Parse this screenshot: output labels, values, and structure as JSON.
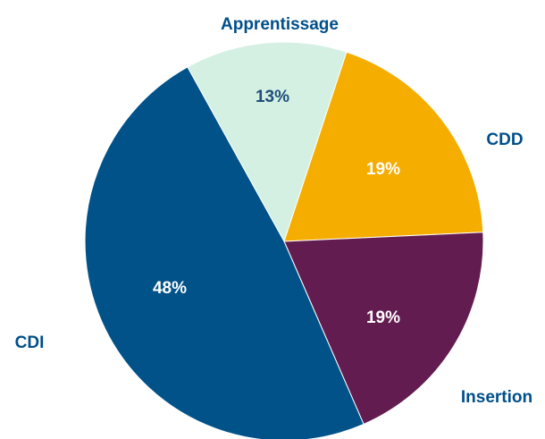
{
  "chart_data": {
    "type": "pie",
    "title": "",
    "start": "top",
    "direction": "clockwise",
    "slices": [
      {
        "name": "Apprentissage",
        "value": 13,
        "value_label": "13%",
        "color": "#d3f0e3",
        "label_color": "#1f4e79",
        "category_color": "#004f8a"
      },
      {
        "name": "CDD",
        "value": 19,
        "value_label": "19%",
        "color": "#f5ad00",
        "label_color": "#ffffff",
        "category_color": "#004f8a"
      },
      {
        "name": "Insertion",
        "value": 19,
        "value_label": "19%",
        "color": "#631c4f",
        "label_color": "#ffffff",
        "category_color": "#004f8a"
      },
      {
        "name": "CDI",
        "value": 48,
        "value_label": "48%",
        "color": "#005289",
        "label_color": "#ffffff",
        "category_color": "#004f8a"
      }
    ]
  }
}
